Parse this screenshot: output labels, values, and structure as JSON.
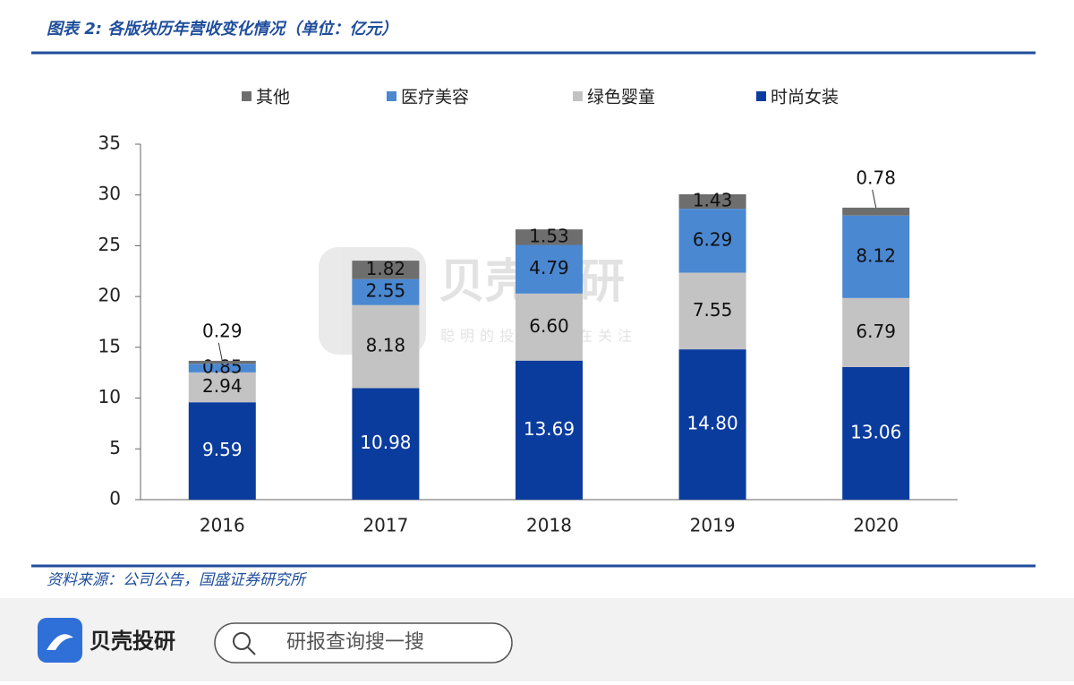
{
  "header": {
    "title": "图表 2: 各版块历年营收变化情况（单位：亿元）"
  },
  "chart_data": {
    "type": "bar",
    "stacked": true,
    "categories": [
      "2016",
      "2017",
      "2018",
      "2019",
      "2020"
    ],
    "series": [
      {
        "name": "其他",
        "color": "#6e6e6e",
        "values": [
          0.29,
          1.82,
          1.53,
          1.43,
          0.78
        ],
        "value_labels": [
          "0.29",
          "1.82",
          "1.53",
          "1.43",
          "0.78"
        ]
      },
      {
        "name": "医疗美容",
        "color": "#4a88d2",
        "values": [
          0.85,
          2.55,
          4.79,
          6.29,
          8.12
        ],
        "value_labels": [
          "0.85",
          "2.55",
          "4.79",
          "6.29",
          "8.12"
        ]
      },
      {
        "name": "绿色婴童",
        "color": "#c3c3c3",
        "values": [
          2.94,
          8.18,
          6.6,
          7.55,
          6.79
        ],
        "value_labels": [
          "2.94",
          "8.18",
          "6.60",
          "7.55",
          "6.79"
        ]
      },
      {
        "name": "时尚女装",
        "color": "#0a3c9e",
        "values": [
          9.59,
          10.98,
          13.69,
          14.8,
          13.06
        ],
        "value_labels": [
          "9.59",
          "10.98",
          "13.69",
          "14.80",
          "13.06"
        ]
      }
    ],
    "ylim": [
      0,
      35
    ],
    "yticks": [
      0,
      5,
      10,
      15,
      20,
      25,
      30,
      35
    ],
    "grid": false,
    "legend": "top"
  },
  "source": "资料来源：公司公告，国盛证券研究所",
  "watermark": {
    "brand": "贝壳投研",
    "slogan": "聪明的投资者都在关注"
  },
  "footer": {
    "brand": "贝壳投研",
    "search_placeholder": "研报查询搜一搜"
  }
}
